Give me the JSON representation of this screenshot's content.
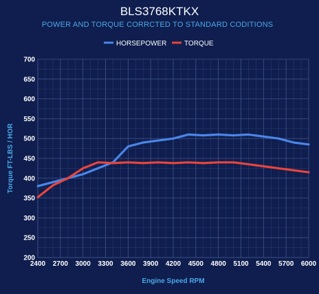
{
  "chart_data": {
    "type": "line",
    "title": "BLS3768KTKX",
    "subtitle": "POWER AND TORQUE CORRCTED TO STANDARD CODITIONS",
    "xlabel": "Engine Speed RPM",
    "ylabel": "Torque FT-LBS / HOR",
    "xlim": [
      2400,
      6000
    ],
    "ylim": [
      200,
      700
    ],
    "x_ticks": [
      "2400",
      "2700",
      "3000",
      "3300",
      "3600",
      "3900",
      "4200",
      "4500",
      "4800",
      "5100",
      "5400",
      "5700",
      "6000"
    ],
    "y_ticks": [
      "200",
      "250",
      "300",
      "350",
      "400",
      "450",
      "500",
      "550",
      "600",
      "650",
      "700"
    ],
    "grid": true,
    "legend_position": "top-center",
    "series": [
      {
        "name": "HORSEPOWER",
        "color": "#4a86e8",
        "x": [
          2400,
          2600,
          2800,
          3000,
          3200,
          3400,
          3600,
          3800,
          4000,
          4200,
          4400,
          4600,
          4800,
          5000,
          5200,
          5400,
          5600,
          5800,
          6000
        ],
        "values": [
          380,
          390,
          400,
          410,
          425,
          440,
          480,
          490,
          495,
          500,
          510,
          508,
          510,
          508,
          510,
          505,
          500,
          490,
          485
        ]
      },
      {
        "name": "TORQUE",
        "color": "#e8453c",
        "x": [
          2400,
          2600,
          2800,
          3000,
          3200,
          3400,
          3600,
          3800,
          4000,
          4200,
          4400,
          4600,
          4800,
          5000,
          5200,
          5400,
          5600,
          5800,
          6000
        ],
        "values": [
          352,
          382,
          400,
          425,
          440,
          438,
          440,
          438,
          440,
          438,
          440,
          438,
          440,
          440,
          435,
          430,
          425,
          420,
          415
        ]
      }
    ]
  }
}
